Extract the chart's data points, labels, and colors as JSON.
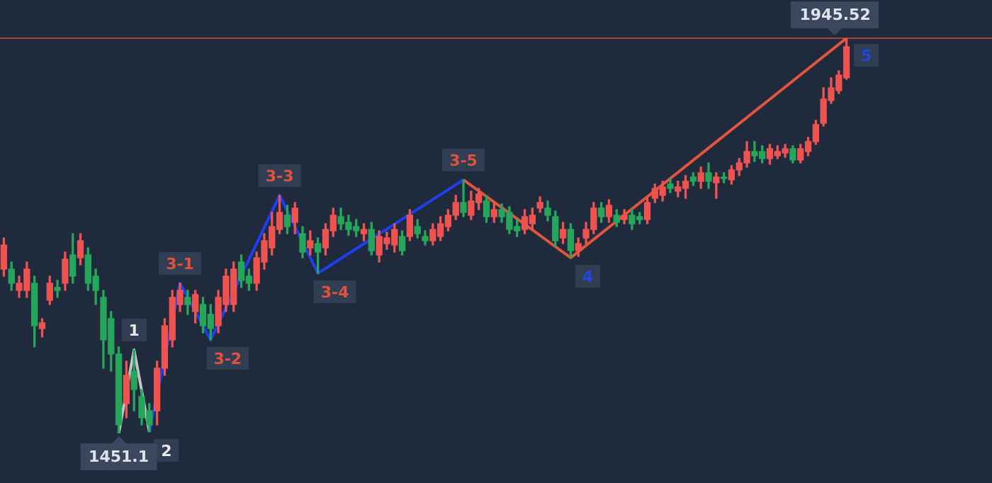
{
  "chart_data": {
    "type": "candlestick",
    "tick_labels": false,
    "categories": [
      null,
      null,
      null,
      null,
      null,
      null,
      null,
      null,
      null,
      null,
      null,
      null,
      null,
      null,
      null,
      null,
      null,
      null,
      null,
      null,
      null,
      null,
      null,
      null,
      null,
      null,
      null,
      null,
      null,
      null,
      null,
      null,
      null,
      null,
      null,
      null,
      null,
      null,
      null,
      null,
      null,
      null,
      null,
      null,
      null,
      null,
      null,
      null,
      null,
      null,
      null,
      null,
      null,
      null,
      null,
      null,
      null,
      null,
      null,
      null,
      null,
      null,
      null,
      null,
      null,
      null,
      null,
      null,
      null,
      null,
      null,
      null,
      null,
      null,
      null,
      null,
      null,
      null,
      null,
      null,
      null,
      null,
      null,
      null,
      null,
      null,
      null,
      null,
      null,
      null,
      null,
      null,
      null,
      null,
      null,
      null,
      null,
      null,
      null,
      null,
      null,
      null,
      null,
      null,
      null,
      null,
      null,
      null,
      null,
      null,
      null
    ],
    "ohlc": [
      [
        1656.7,
        1695.7,
        1647.9,
        1686.8
      ],
      [
        1656.7,
        1665.6,
        1630.1,
        1639.0
      ],
      [
        1630.1,
        1647.9,
        1621.3,
        1639.0
      ],
      [
        1630.1,
        1665.6,
        1621.3,
        1656.7
      ],
      [
        1639.0,
        1647.9,
        1559.3,
        1585.8
      ],
      [
        1582.3,
        1594.7,
        1571.7,
        1589.4
      ],
      [
        1617.7,
        1647.9,
        1612.4,
        1639.0
      ],
      [
        1633.7,
        1642.5,
        1621.3,
        1630.1
      ],
      [
        1639.0,
        1678.0,
        1630.1,
        1669.1
      ],
      [
        1674.4,
        1701.0,
        1639.0,
        1647.9
      ],
      [
        1670.9,
        1701.0,
        1662.0,
        1692.2
      ],
      [
        1674.4,
        1683.3,
        1630.1,
        1639.0
      ],
      [
        1647.9,
        1656.7,
        1612.4,
        1630.1
      ],
      [
        1621.3,
        1630.1,
        1532.7,
        1568.1
      ],
      [
        1594.7,
        1603.6,
        1529.1,
        1550.4
      ],
      [
        1550.4,
        1559.3,
        1451.1,
        1461.8
      ],
      [
        1488.4,
        1541.5,
        1470.7,
        1523.8
      ],
      [
        1529.1,
        1555.7,
        1479.5,
        1506.1
      ],
      [
        1497.2,
        1506.1,
        1461.8,
        1470.7
      ],
      [
        1479.5,
        1488.4,
        1453.0,
        1461.8
      ],
      [
        1479.5,
        1541.5,
        1461.8,
        1532.7
      ],
      [
        1532.7,
        1594.7,
        1523.8,
        1585.8
      ],
      [
        1568.1,
        1630.1,
        1559.3,
        1621.3
      ],
      [
        1612.4,
        1639.0,
        1603.6,
        1630.1
      ],
      [
        1621.3,
        1630.1,
        1600.0,
        1612.4
      ],
      [
        1603.6,
        1630.1,
        1589.4,
        1624.8
      ],
      [
        1612.4,
        1621.3,
        1577.0,
        1585.8
      ],
      [
        1600.0,
        1612.4,
        1568.1,
        1582.3
      ],
      [
        1585.8,
        1630.1,
        1577.0,
        1621.3
      ],
      [
        1612.4,
        1656.7,
        1603.6,
        1647.9
      ],
      [
        1612.4,
        1665.6,
        1603.6,
        1656.7
      ],
      [
        1665.6,
        1674.4,
        1633.7,
        1642.5
      ],
      [
        1647.9,
        1656.7,
        1630.1,
        1639.0
      ],
      [
        1639.0,
        1678.0,
        1630.1,
        1670.9
      ],
      [
        1665.6,
        1701.0,
        1656.7,
        1692.2
      ],
      [
        1683.3,
        1727.6,
        1674.4,
        1709.9
      ],
      [
        1706.3,
        1748.9,
        1701.0,
        1727.6
      ],
      [
        1724.1,
        1736.5,
        1701.0,
        1709.9
      ],
      [
        1715.2,
        1740.0,
        1701.0,
        1733.0
      ],
      [
        1701.0,
        1709.9,
        1670.9,
        1678.0
      ],
      [
        1683.3,
        1704.6,
        1674.4,
        1692.2
      ],
      [
        1688.6,
        1695.7,
        1651.4,
        1678.0
      ],
      [
        1683.3,
        1713.4,
        1674.4,
        1706.3
      ],
      [
        1704.6,
        1733.0,
        1697.5,
        1724.1
      ],
      [
        1722.3,
        1733.0,
        1706.3,
        1713.4
      ],
      [
        1715.2,
        1724.1,
        1699.2,
        1706.3
      ],
      [
        1709.9,
        1718.7,
        1697.5,
        1704.6
      ],
      [
        1701.0,
        1713.4,
        1692.2,
        1706.3
      ],
      [
        1706.3,
        1715.2,
        1674.4,
        1679.8
      ],
      [
        1674.4,
        1704.6,
        1665.6,
        1697.5
      ],
      [
        1688.6,
        1702.8,
        1681.5,
        1695.7
      ],
      [
        1686.8,
        1713.4,
        1678.0,
        1706.3
      ],
      [
        1697.5,
        1704.6,
        1674.4,
        1679.8
      ],
      [
        1697.5,
        1731.1,
        1692.2,
        1724.1
      ],
      [
        1709.9,
        1718.7,
        1695.7,
        1701.0
      ],
      [
        1697.5,
        1704.6,
        1686.8,
        1692.2
      ],
      [
        1692.2,
        1713.4,
        1686.8,
        1706.3
      ],
      [
        1697.5,
        1722.3,
        1692.2,
        1713.4
      ],
      [
        1709.9,
        1731.1,
        1704.6,
        1724.1
      ],
      [
        1724.1,
        1748.9,
        1718.7,
        1740.0
      ],
      [
        1740.0,
        1768.4,
        1722.3,
        1727.6
      ],
      [
        1724.1,
        1754.2,
        1718.7,
        1741.8
      ],
      [
        1740.0,
        1757.7,
        1731.1,
        1750.6
      ],
      [
        1741.8,
        1748.9,
        1715.2,
        1722.3
      ],
      [
        1722.3,
        1740.0,
        1715.2,
        1731.1
      ],
      [
        1731.1,
        1738.2,
        1715.2,
        1722.3
      ],
      [
        1727.6,
        1734.7,
        1701.0,
        1706.3
      ],
      [
        1709.9,
        1718.7,
        1697.5,
        1704.6
      ],
      [
        1706.3,
        1731.1,
        1701.0,
        1722.3
      ],
      [
        1713.4,
        1733.0,
        1706.3,
        1724.1
      ],
      [
        1733.0,
        1747.1,
        1727.6,
        1740.0
      ],
      [
        1733.0,
        1741.8,
        1717.0,
        1724.1
      ],
      [
        1722.3,
        1729.4,
        1685.1,
        1692.2
      ],
      [
        1695.7,
        1715.2,
        1688.6,
        1706.3
      ],
      [
        1706.3,
        1713.4,
        1670.9,
        1679.8
      ],
      [
        1679.8,
        1695.7,
        1672.7,
        1688.6
      ],
      [
        1695.7,
        1715.2,
        1688.6,
        1706.3
      ],
      [
        1706.3,
        1740.0,
        1701.0,
        1733.0
      ],
      [
        1733.0,
        1740.0,
        1715.2,
        1722.3
      ],
      [
        1722.3,
        1743.5,
        1715.2,
        1736.5
      ],
      [
        1724.1,
        1731.1,
        1709.9,
        1715.2
      ],
      [
        1718.7,
        1731.1,
        1713.4,
        1724.1
      ],
      [
        1724.1,
        1731.1,
        1706.3,
        1713.4
      ],
      [
        1722.3,
        1727.6,
        1713.4,
        1718.7
      ],
      [
        1718.7,
        1745.3,
        1713.4,
        1740.0
      ],
      [
        1745.3,
        1763.0,
        1740.0,
        1757.7
      ],
      [
        1748.9,
        1766.6,
        1741.8,
        1759.5
      ],
      [
        1763.0,
        1770.1,
        1752.4,
        1757.7
      ],
      [
        1754.2,
        1766.6,
        1747.1,
        1759.5
      ],
      [
        1757.7,
        1773.7,
        1745.3,
        1766.6
      ],
      [
        1771.9,
        1777.2,
        1761.3,
        1766.6
      ],
      [
        1766.6,
        1784.3,
        1757.7,
        1777.2
      ],
      [
        1777.2,
        1789.6,
        1757.7,
        1766.6
      ],
      [
        1764.8,
        1777.2,
        1745.3,
        1771.9
      ],
      [
        1771.9,
        1777.2,
        1764.8,
        1770.1
      ],
      [
        1768.4,
        1786.1,
        1763.0,
        1780.8
      ],
      [
        1780.8,
        1795.0,
        1773.7,
        1789.6
      ],
      [
        1789.6,
        1816.2,
        1784.3,
        1803.8
      ],
      [
        1803.8,
        1816.2,
        1791.4,
        1798.5
      ],
      [
        1803.8,
        1810.9,
        1789.6,
        1795.0
      ],
      [
        1795.0,
        1812.7,
        1787.8,
        1807.3
      ],
      [
        1798.5,
        1810.9,
        1795.0,
        1803.8
      ],
      [
        1802.0,
        1812.7,
        1796.7,
        1807.3
      ],
      [
        1807.3,
        1810.9,
        1789.6,
        1793.2
      ],
      [
        1793.2,
        1812.7,
        1789.6,
        1807.3
      ],
      [
        1803.8,
        1821.5,
        1798.5,
        1816.2
      ],
      [
        1816.2,
        1842.8,
        1812.7,
        1837.5
      ],
      [
        1839.2,
        1883.5,
        1835.7,
        1869.4
      ],
      [
        1867.6,
        1896.0,
        1864.0,
        1883.5
      ],
      [
        1880.0,
        1904.8,
        1876.4,
        1899.5
      ],
      [
        1896.0,
        1945.52,
        1894.2,
        1934.9
      ]
    ],
    "colors": [
      "#ef5350",
      "#26a65b",
      "#ef5350",
      "#ef5350",
      "#26a65b",
      "#ef5350",
      "#ef5350",
      "#26a65b",
      "#ef5350",
      "#26a65b",
      "#ef5350",
      "#26a65b",
      "#26a65b",
      "#26a65b",
      "#26a65b",
      "#26a65b",
      "#ef5350",
      "#26a65b",
      "#26a65b",
      "#26a65b",
      "#ef5350",
      "#ef5350",
      "#ef5350",
      "#ef5350",
      "#26a65b",
      "#ef5350",
      "#26a65b",
      "#26a65b",
      "#ef5350",
      "#ef5350",
      "#ef5350",
      "#26a65b",
      "#26a65b",
      "#ef5350",
      "#ef5350",
      "#ef5350",
      "#ef5350",
      "#26a65b",
      "#ef5350",
      "#26a65b",
      "#ef5350",
      "#26a65b",
      "#ef5350",
      "#ef5350",
      "#26a65b",
      "#26a65b",
      "#26a65b",
      "#ef5350",
      "#26a65b",
      "#ef5350",
      "#ef5350",
      "#ef5350",
      "#26a65b",
      "#ef5350",
      "#26a65b",
      "#26a65b",
      "#ef5350",
      "#ef5350",
      "#ef5350",
      "#ef5350",
      "#26a65b",
      "#ef5350",
      "#ef5350",
      "#26a65b",
      "#ef5350",
      "#26a65b",
      "#26a65b",
      "#26a65b",
      "#ef5350",
      "#ef5350",
      "#ef5350",
      "#26a65b",
      "#26a65b",
      "#ef5350",
      "#26a65b",
      "#ef5350",
      "#ef5350",
      "#ef5350",
      "#26a65b",
      "#ef5350",
      "#26a65b",
      "#ef5350",
      "#26a65b",
      "#26a65b",
      "#ef5350",
      "#ef5350",
      "#ef5350",
      "#26a65b",
      "#ef5350",
      "#ef5350",
      "#26a65b",
      "#ef5350",
      "#26a65b",
      "#ef5350",
      "#26a65b",
      "#ef5350",
      "#ef5350",
      "#ef5350",
      "#26a65b",
      "#26a65b",
      "#ef5350",
      "#ef5350",
      "#ef5350",
      "#26a65b",
      "#ef5350",
      "#ef5350",
      "#ef5350",
      "#ef5350",
      "#ef5350",
      "#ef5350",
      "#ef5350"
    ],
    "series": [
      {
        "type": "line",
        "color": "#c4c4c4",
        "values": [
          null,
          null,
          null,
          null,
          null,
          null,
          null,
          null,
          null,
          null,
          null,
          null,
          null,
          null,
          null,
          1451.1,
          null,
          1555.7,
          null,
          1453.0,
          null,
          null,
          null,
          null,
          null,
          null,
          null,
          null,
          null,
          null,
          null,
          null,
          null,
          null,
          null,
          null,
          null,
          null,
          null,
          null,
          null,
          null,
          null,
          null,
          null,
          null,
          null,
          null,
          null,
          null,
          null,
          null,
          null,
          null,
          null,
          null,
          null,
          null,
          null,
          null,
          null,
          null,
          null,
          null,
          null,
          null,
          null,
          null,
          null,
          null,
          null,
          null,
          null,
          null,
          null,
          null,
          null,
          null,
          null,
          null,
          null,
          null,
          null,
          null,
          null,
          null,
          null,
          null,
          null,
          null,
          null,
          null,
          null,
          null,
          null,
          null,
          null,
          null,
          null,
          null,
          null,
          null,
          null,
          null,
          null,
          null,
          null,
          null,
          null,
          null,
          null
        ],
        "name": null
      },
      {
        "type": "line",
        "color": "#1e3ff0",
        "values": [
          null,
          null,
          null,
          null,
          null,
          null,
          null,
          null,
          null,
          null,
          null,
          null,
          null,
          null,
          null,
          null,
          null,
          null,
          null,
          1453.0,
          null,
          null,
          null,
          1639.0,
          null,
          null,
          null,
          1568.1,
          null,
          null,
          null,
          null,
          null,
          null,
          null,
          null,
          1748.9,
          null,
          null,
          null,
          null,
          1651.4,
          null,
          null,
          null,
          null,
          null,
          null,
          null,
          null,
          null,
          null,
          null,
          null,
          null,
          null,
          null,
          null,
          null,
          null,
          1768.4,
          null,
          null,
          null,
          null,
          null,
          null,
          null,
          null,
          null,
          null,
          null,
          null,
          null,
          null,
          null,
          null,
          null,
          null,
          null,
          null,
          null,
          null,
          null,
          null,
          null,
          null,
          null,
          null,
          null,
          null,
          null,
          null,
          null,
          null,
          null,
          null,
          null,
          null,
          null,
          null,
          null,
          null,
          null,
          null,
          null,
          null,
          null,
          null,
          null,
          null
        ],
        "name": null
      },
      {
        "type": "line",
        "color": "#e2553c",
        "values": [
          null,
          null,
          null,
          null,
          null,
          null,
          null,
          null,
          null,
          null,
          null,
          null,
          null,
          null,
          null,
          null,
          null,
          null,
          null,
          null,
          null,
          null,
          null,
          null,
          null,
          null,
          null,
          null,
          null,
          null,
          null,
          null,
          null,
          null,
          null,
          null,
          null,
          null,
          null,
          null,
          null,
          null,
          null,
          null,
          null,
          null,
          null,
          null,
          null,
          null,
          null,
          null,
          null,
          null,
          null,
          null,
          null,
          null,
          null,
          null,
          1768.4,
          null,
          null,
          null,
          null,
          null,
          null,
          null,
          null,
          null,
          null,
          null,
          null,
          null,
          1670.9,
          null,
          null,
          null,
          null,
          null,
          null,
          null,
          null,
          null,
          null,
          null,
          null,
          null,
          null,
          null,
          null,
          null,
          null,
          null,
          null,
          null,
          null,
          null,
          null,
          null,
          null,
          null,
          null,
          null,
          null,
          null,
          null,
          null,
          null,
          null,
          1945.52
        ],
        "name": null
      }
    ],
    "ref_lines": [
      {
        "axis": "y",
        "value": 1945.52,
        "label": "1945.52",
        "color": "#a8413a"
      }
    ],
    "annotations": [
      {
        "text": "1451.1",
        "y": 1451.1
      },
      "1",
      "2",
      "3-1",
      "3-2",
      "3-3",
      "3-4",
      "3-5",
      "4",
      "5"
    ]
  }
}
